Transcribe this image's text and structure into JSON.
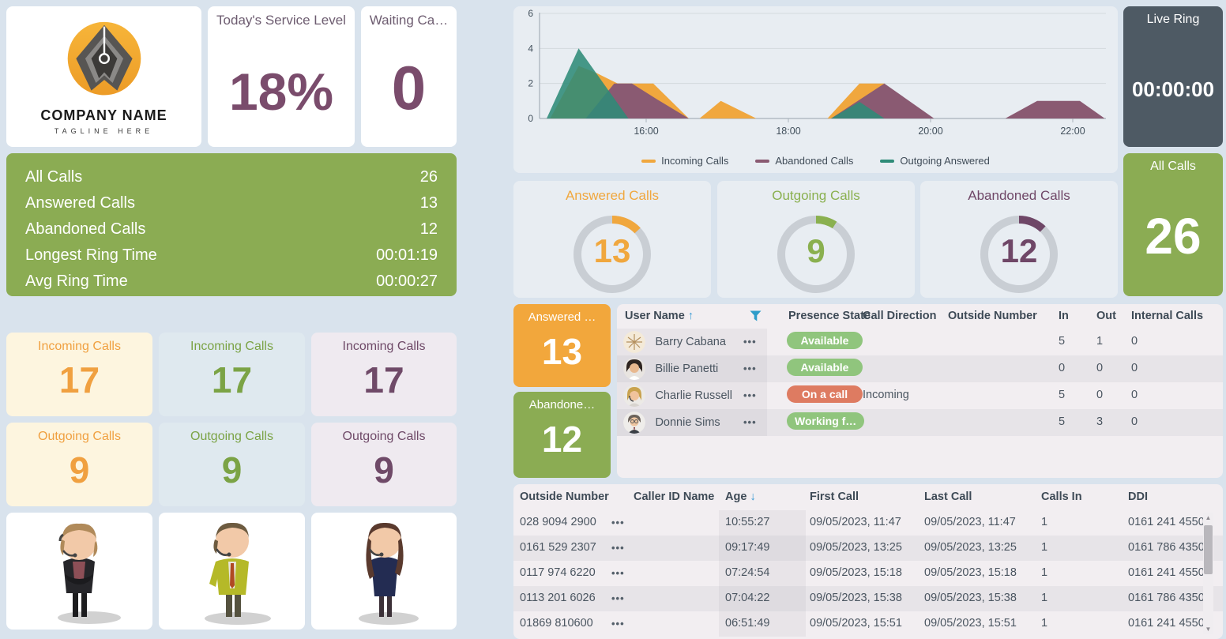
{
  "logo_card": {
    "company": "COMPANY NAME",
    "tagline": "TAGLINE HERE"
  },
  "service_level_card": {
    "title": "Today's Service Level",
    "value": "18%"
  },
  "waiting_card": {
    "title": "Waiting Ca…",
    "value": "0"
  },
  "stats_panel": {
    "rows": [
      {
        "label": "All Calls",
        "value": "26"
      },
      {
        "label": "Answered Calls",
        "value": "13"
      },
      {
        "label": "Abandoned Calls",
        "value": "12"
      },
      {
        "label": "Longest Ring Time",
        "value": "00:01:19"
      },
      {
        "label": "Avg Ring Time",
        "value": "00:00:27"
      }
    ]
  },
  "tiles": [
    {
      "title": "Incoming Calls",
      "value": "17"
    },
    {
      "title": "Incoming Calls",
      "value": "17"
    },
    {
      "title": "Incoming Calls",
      "value": "17"
    },
    {
      "title": "Outgoing Calls",
      "value": "9"
    },
    {
      "title": "Outgoing Calls",
      "value": "9"
    },
    {
      "title": "Outgoing Calls",
      "value": "9"
    }
  ],
  "chart_data": {
    "type": "area",
    "title": "",
    "xlabel": "",
    "ylabel": "",
    "ylim": [
      0,
      6
    ],
    "y_ticks": [
      0,
      2,
      4,
      6
    ],
    "x_ticks": [
      "16:00",
      "18:00",
      "20:00",
      "22:00"
    ],
    "x_tick_hours": [
      16,
      18,
      20,
      22
    ],
    "grid": true,
    "legend_position": "bottom",
    "series": [
      {
        "name": "Incoming Calls",
        "color": "#f0a73e",
        "points": [
          [
            14.65,
            0
          ],
          [
            15.05,
            3
          ],
          [
            15.3,
            2.6
          ],
          [
            15.6,
            2
          ],
          [
            16.1,
            2
          ],
          [
            16.6,
            0
          ],
          [
            16.75,
            0
          ],
          [
            17.05,
            1
          ],
          [
            17.55,
            0
          ],
          [
            18.55,
            0
          ],
          [
            19.0,
            2
          ],
          [
            19.35,
            2
          ],
          [
            19.9,
            0
          ],
          [
            22.5,
            0
          ]
        ]
      },
      {
        "name": "Abandoned Calls",
        "color": "#8a5a72",
        "points": [
          [
            15.15,
            0
          ],
          [
            15.55,
            2
          ],
          [
            15.8,
            2
          ],
          [
            16.15,
            1.1
          ],
          [
            16.6,
            0
          ],
          [
            18.6,
            0
          ],
          [
            19.35,
            2
          ],
          [
            20.05,
            0
          ],
          [
            21.05,
            0
          ],
          [
            21.5,
            1
          ],
          [
            22.1,
            1
          ],
          [
            22.45,
            0
          ]
        ]
      },
      {
        "name": "Outgoing Answered",
        "color": "#2e8b78",
        "points": [
          [
            14.6,
            0
          ],
          [
            15.05,
            4
          ],
          [
            15.75,
            0
          ],
          [
            18.6,
            0
          ],
          [
            19.0,
            0.95
          ],
          [
            19.35,
            0
          ],
          [
            22.5,
            0
          ]
        ]
      }
    ]
  },
  "live_ring_card": {
    "title": "Live Ring",
    "value": "00:00:00"
  },
  "all_calls_card": {
    "title": "All Calls",
    "value": "26"
  },
  "gauges": [
    {
      "title": "Answered Calls",
      "value": "13",
      "percent": 13,
      "color": "#f0a73e"
    },
    {
      "title": "Outgoing Calls",
      "value": "9",
      "percent": 9,
      "color": "#8ab04f"
    },
    {
      "title": "Abandoned Calls",
      "value": "12",
      "percent": 12,
      "color": "#6f4767"
    }
  ],
  "summary_tiles": [
    {
      "title": "Answered …",
      "value": "13"
    },
    {
      "title": "Abandone…",
      "value": "12"
    }
  ],
  "icons": {
    "sort_asc": "↑",
    "sort_desc": "↓",
    "ellipsis": "•••",
    "scroll_up": "▲",
    "scroll_down": "▼"
  },
  "users_table": {
    "columns": [
      "User Name",
      "Presence State",
      "Call Direction",
      "Outside Number",
      "In",
      "Out",
      "Internal Calls"
    ],
    "rows": [
      {
        "name": "Barry Cabana",
        "presence": "Available",
        "presence_type": "ok",
        "direction": "",
        "outside": "",
        "in": "5",
        "out": "1",
        "internal": "0"
      },
      {
        "name": "Billie Panetti",
        "presence": "Available",
        "presence_type": "ok",
        "direction": "",
        "outside": "",
        "in": "0",
        "out": "0",
        "internal": "0"
      },
      {
        "name": "Charlie Russell",
        "presence": "On a call",
        "presence_type": "busy",
        "direction": "Incoming",
        "outside": "",
        "in": "5",
        "out": "0",
        "internal": "0"
      },
      {
        "name": "Donnie Sims",
        "presence": "Working f…",
        "presence_type": "ok",
        "direction": "",
        "outside": "",
        "in": "5",
        "out": "3",
        "internal": "0"
      }
    ]
  },
  "calls_table": {
    "columns": [
      "Outside Number",
      "Caller ID Name",
      "Age",
      "First Call",
      "Last Call",
      "Calls In",
      "DDI"
    ],
    "rows": [
      {
        "outside": "028 9094 2900",
        "caller_id": "",
        "age": "10:55:27",
        "first_call": "09/05/2023, 11:47",
        "last_call": "09/05/2023, 11:47",
        "calls_in": "1",
        "ddi": "0161 241 4550"
      },
      {
        "outside": "0161 529 2307",
        "caller_id": "",
        "age": "09:17:49",
        "first_call": "09/05/2023, 13:25",
        "last_call": "09/05/2023, 13:25",
        "calls_in": "1",
        "ddi": "0161 786 4350"
      },
      {
        "outside": "0117 974 6220",
        "caller_id": "",
        "age": "07:24:54",
        "first_call": "09/05/2023, 15:18",
        "last_call": "09/05/2023, 15:18",
        "calls_in": "1",
        "ddi": "0161 241 4550"
      },
      {
        "outside": "0113 201 6026",
        "caller_id": "",
        "age": "07:04:22",
        "first_call": "09/05/2023, 15:38",
        "last_call": "09/05/2023, 15:38",
        "calls_in": "1",
        "ddi": "0161 786 4350"
      },
      {
        "outside": "01869 810600",
        "caller_id": "",
        "age": "06:51:49",
        "first_call": "09/05/2023, 15:51",
        "last_call": "09/05/2023, 15:51",
        "calls_in": "1",
        "ddi": "0161 241 4550"
      }
    ]
  }
}
